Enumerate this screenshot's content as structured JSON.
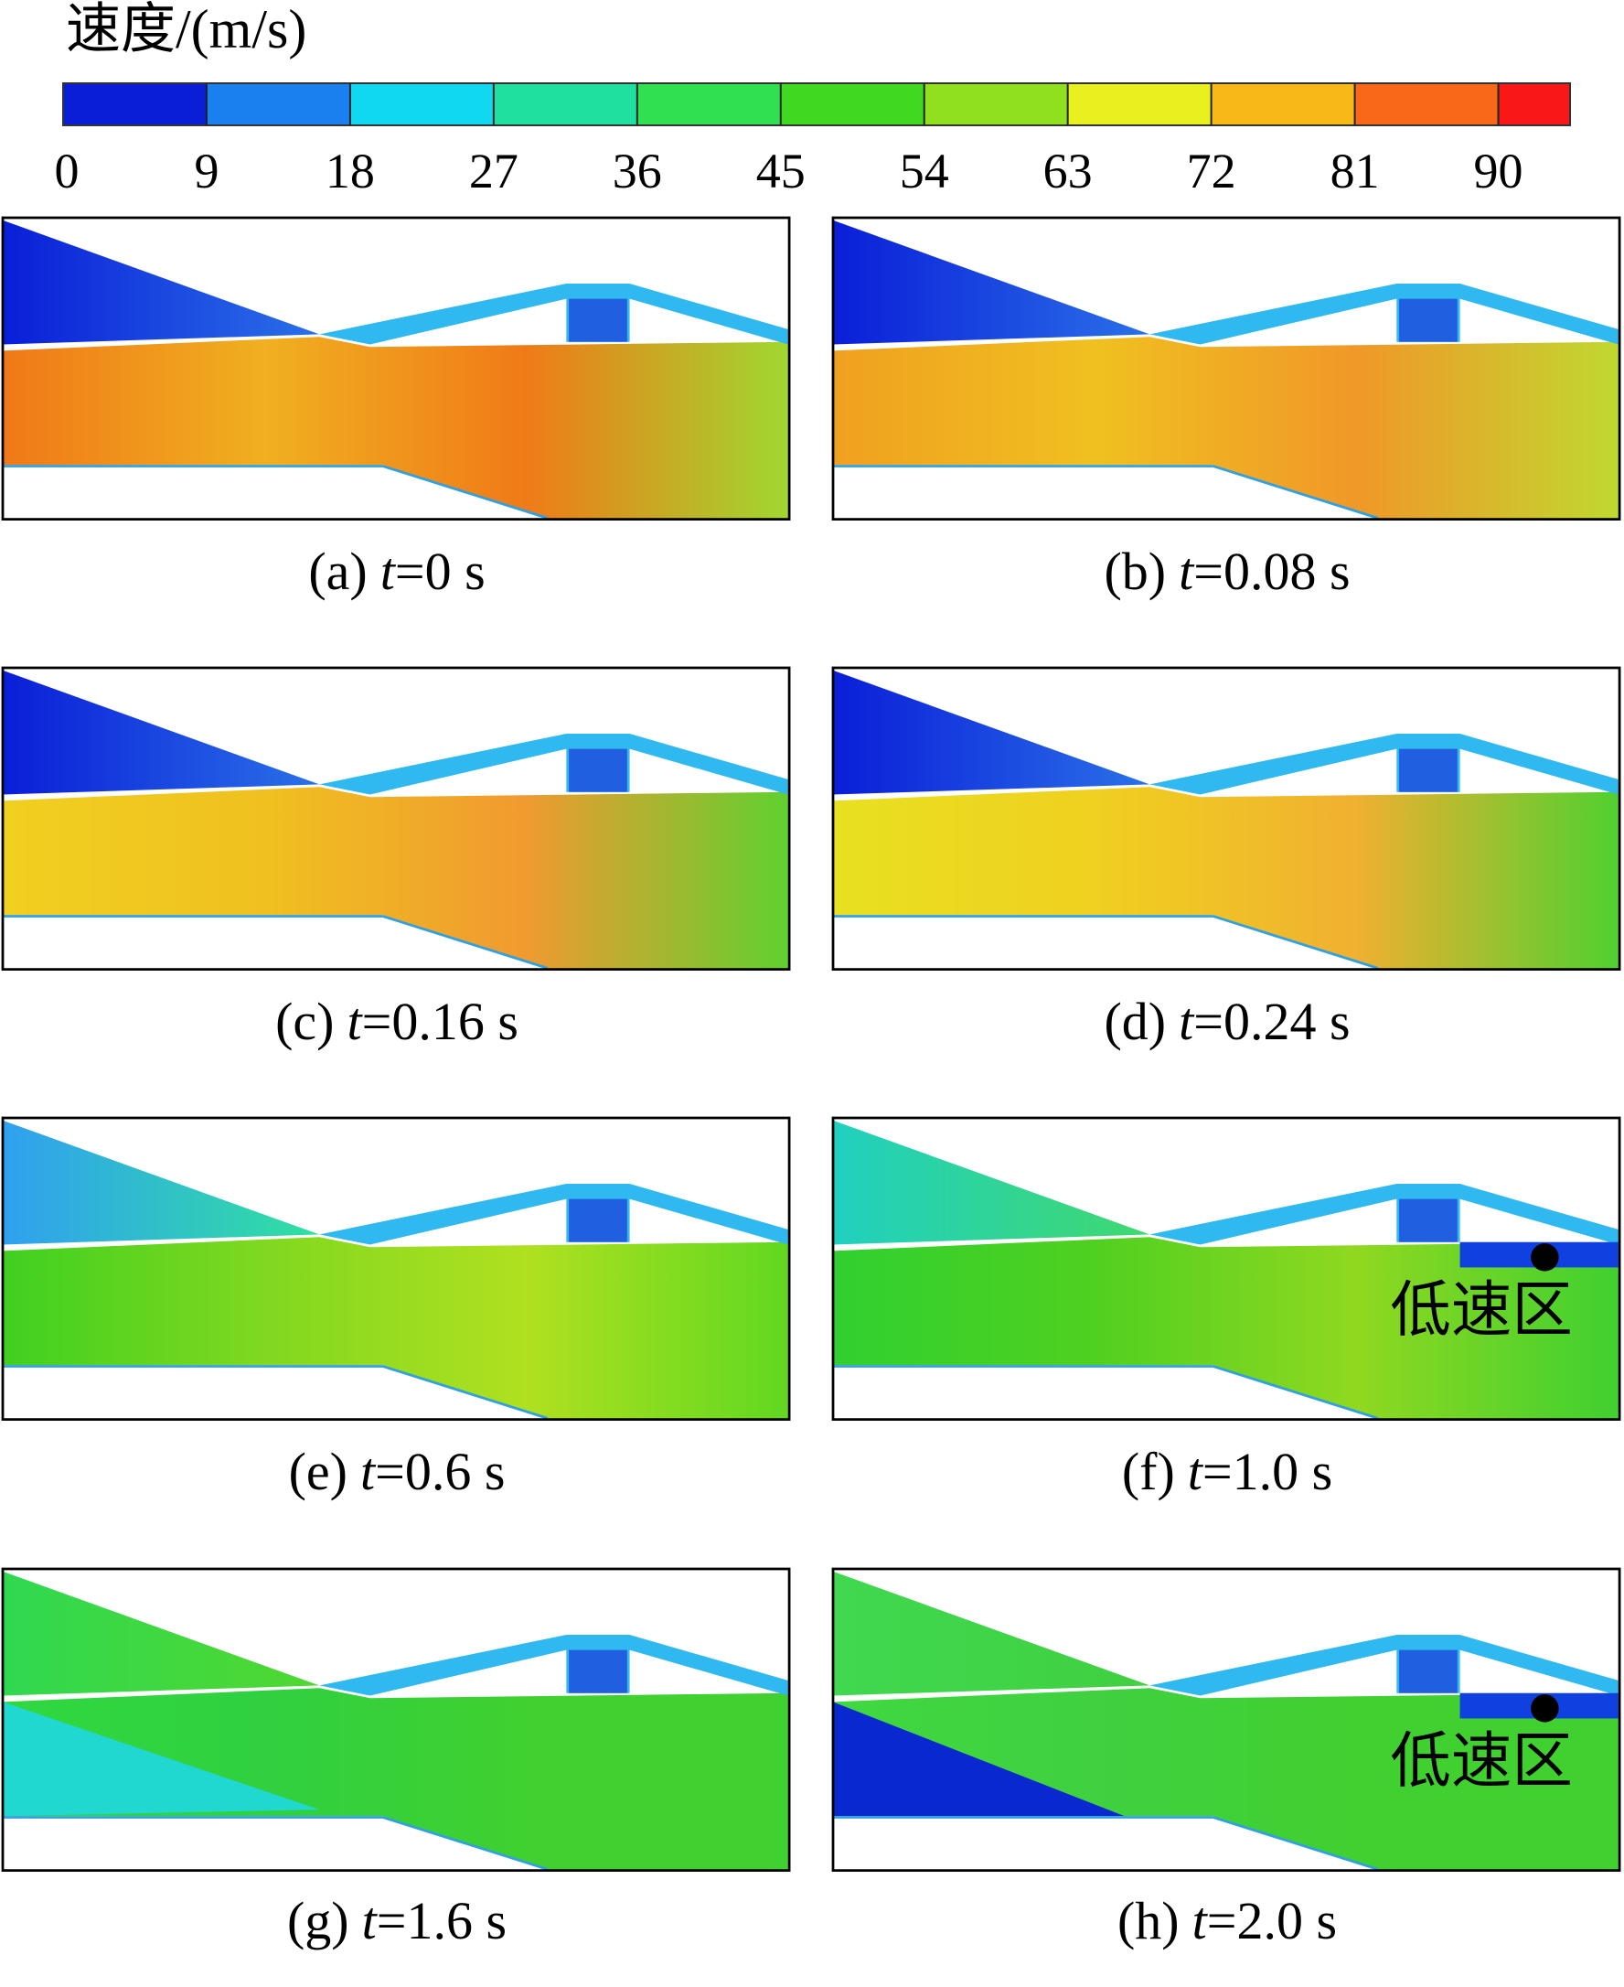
{
  "colorbar": {
    "title": "速度/(m/s)",
    "ticks": [
      0,
      9,
      18,
      27,
      36,
      45,
      54,
      63,
      72,
      81,
      90
    ],
    "lim": [
      0,
      94.5
    ],
    "colors": [
      "#0a1ed8",
      "#1a80f0",
      "#10d8f0",
      "#20e0a0",
      "#30e050",
      "#40d820",
      "#90e020",
      "#e8f020",
      "#f8b818",
      "#f86818",
      "#f81818"
    ]
  },
  "panels": [
    {
      "tag": "(a)",
      "var": "t",
      "rest": "=0 s"
    },
    {
      "tag": "(b)",
      "var": "t",
      "rest": "=0.08 s"
    },
    {
      "tag": "(c)",
      "var": "t",
      "rest": "=0.16 s"
    },
    {
      "tag": "(d)",
      "var": "t",
      "rest": "=0.24 s"
    },
    {
      "tag": "(e)",
      "var": "t",
      "rest": "=0.6 s"
    },
    {
      "tag": "(f)",
      "var": "t",
      "rest": "=1.0 s",
      "annotation": "低速区"
    },
    {
      "tag": "(g)",
      "var": "t",
      "rest": "=1.6 s"
    },
    {
      "tag": "(h)",
      "var": "t",
      "rest": "=2.0 s",
      "annotation": "低速区"
    }
  ]
}
